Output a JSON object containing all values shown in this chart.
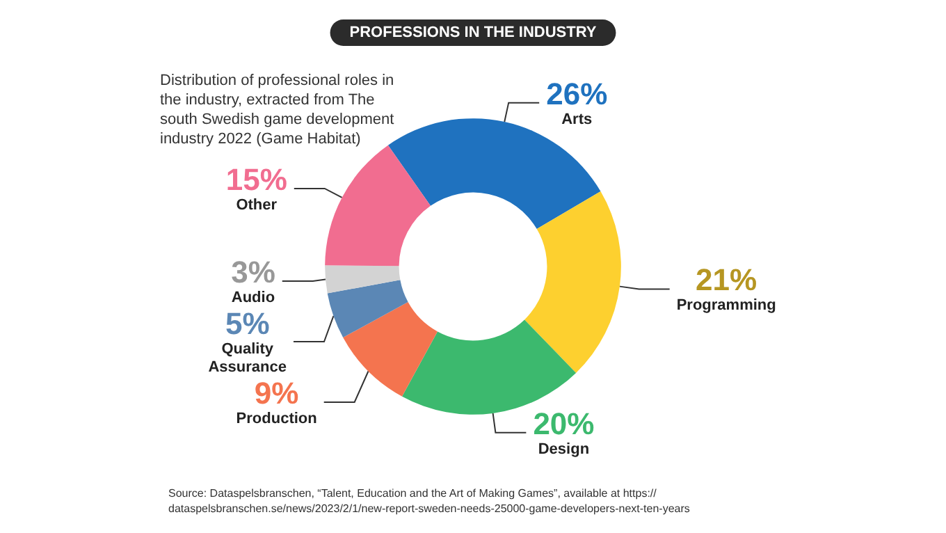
{
  "chart_data": {
    "type": "donut",
    "title": "PROFESSIONS IN THE INDUSTRY",
    "subtitle": "Distribution of professional roles in the industry, extracted from The south Swedish game development industry 2022 (Game Habitat)",
    "categories": [
      "Arts",
      "Programming",
      "Design",
      "Production",
      "Quality Assurance",
      "Audio",
      "Other"
    ],
    "values": [
      26,
      21,
      20,
      9,
      5,
      3,
      15
    ],
    "value_labels": [
      "26%",
      "21%",
      "20%",
      "9%",
      "5%",
      "3%",
      "15%"
    ],
    "colors": [
      "#1f72bf",
      "#fdd02f",
      "#3cb96e",
      "#f4744f",
      "#5b87b5",
      "#d3d3d3",
      "#f16d90"
    ],
    "legend": false,
    "annotations": [
      "Source: Dataspelsbranschen, “Talent, Education and the Art of Making Games”, available at https://dataspelsbranschen.se/news/2023/2/1/new-report-sweden-needs-25000-game-developers-next-ten-years"
    ]
  }
}
